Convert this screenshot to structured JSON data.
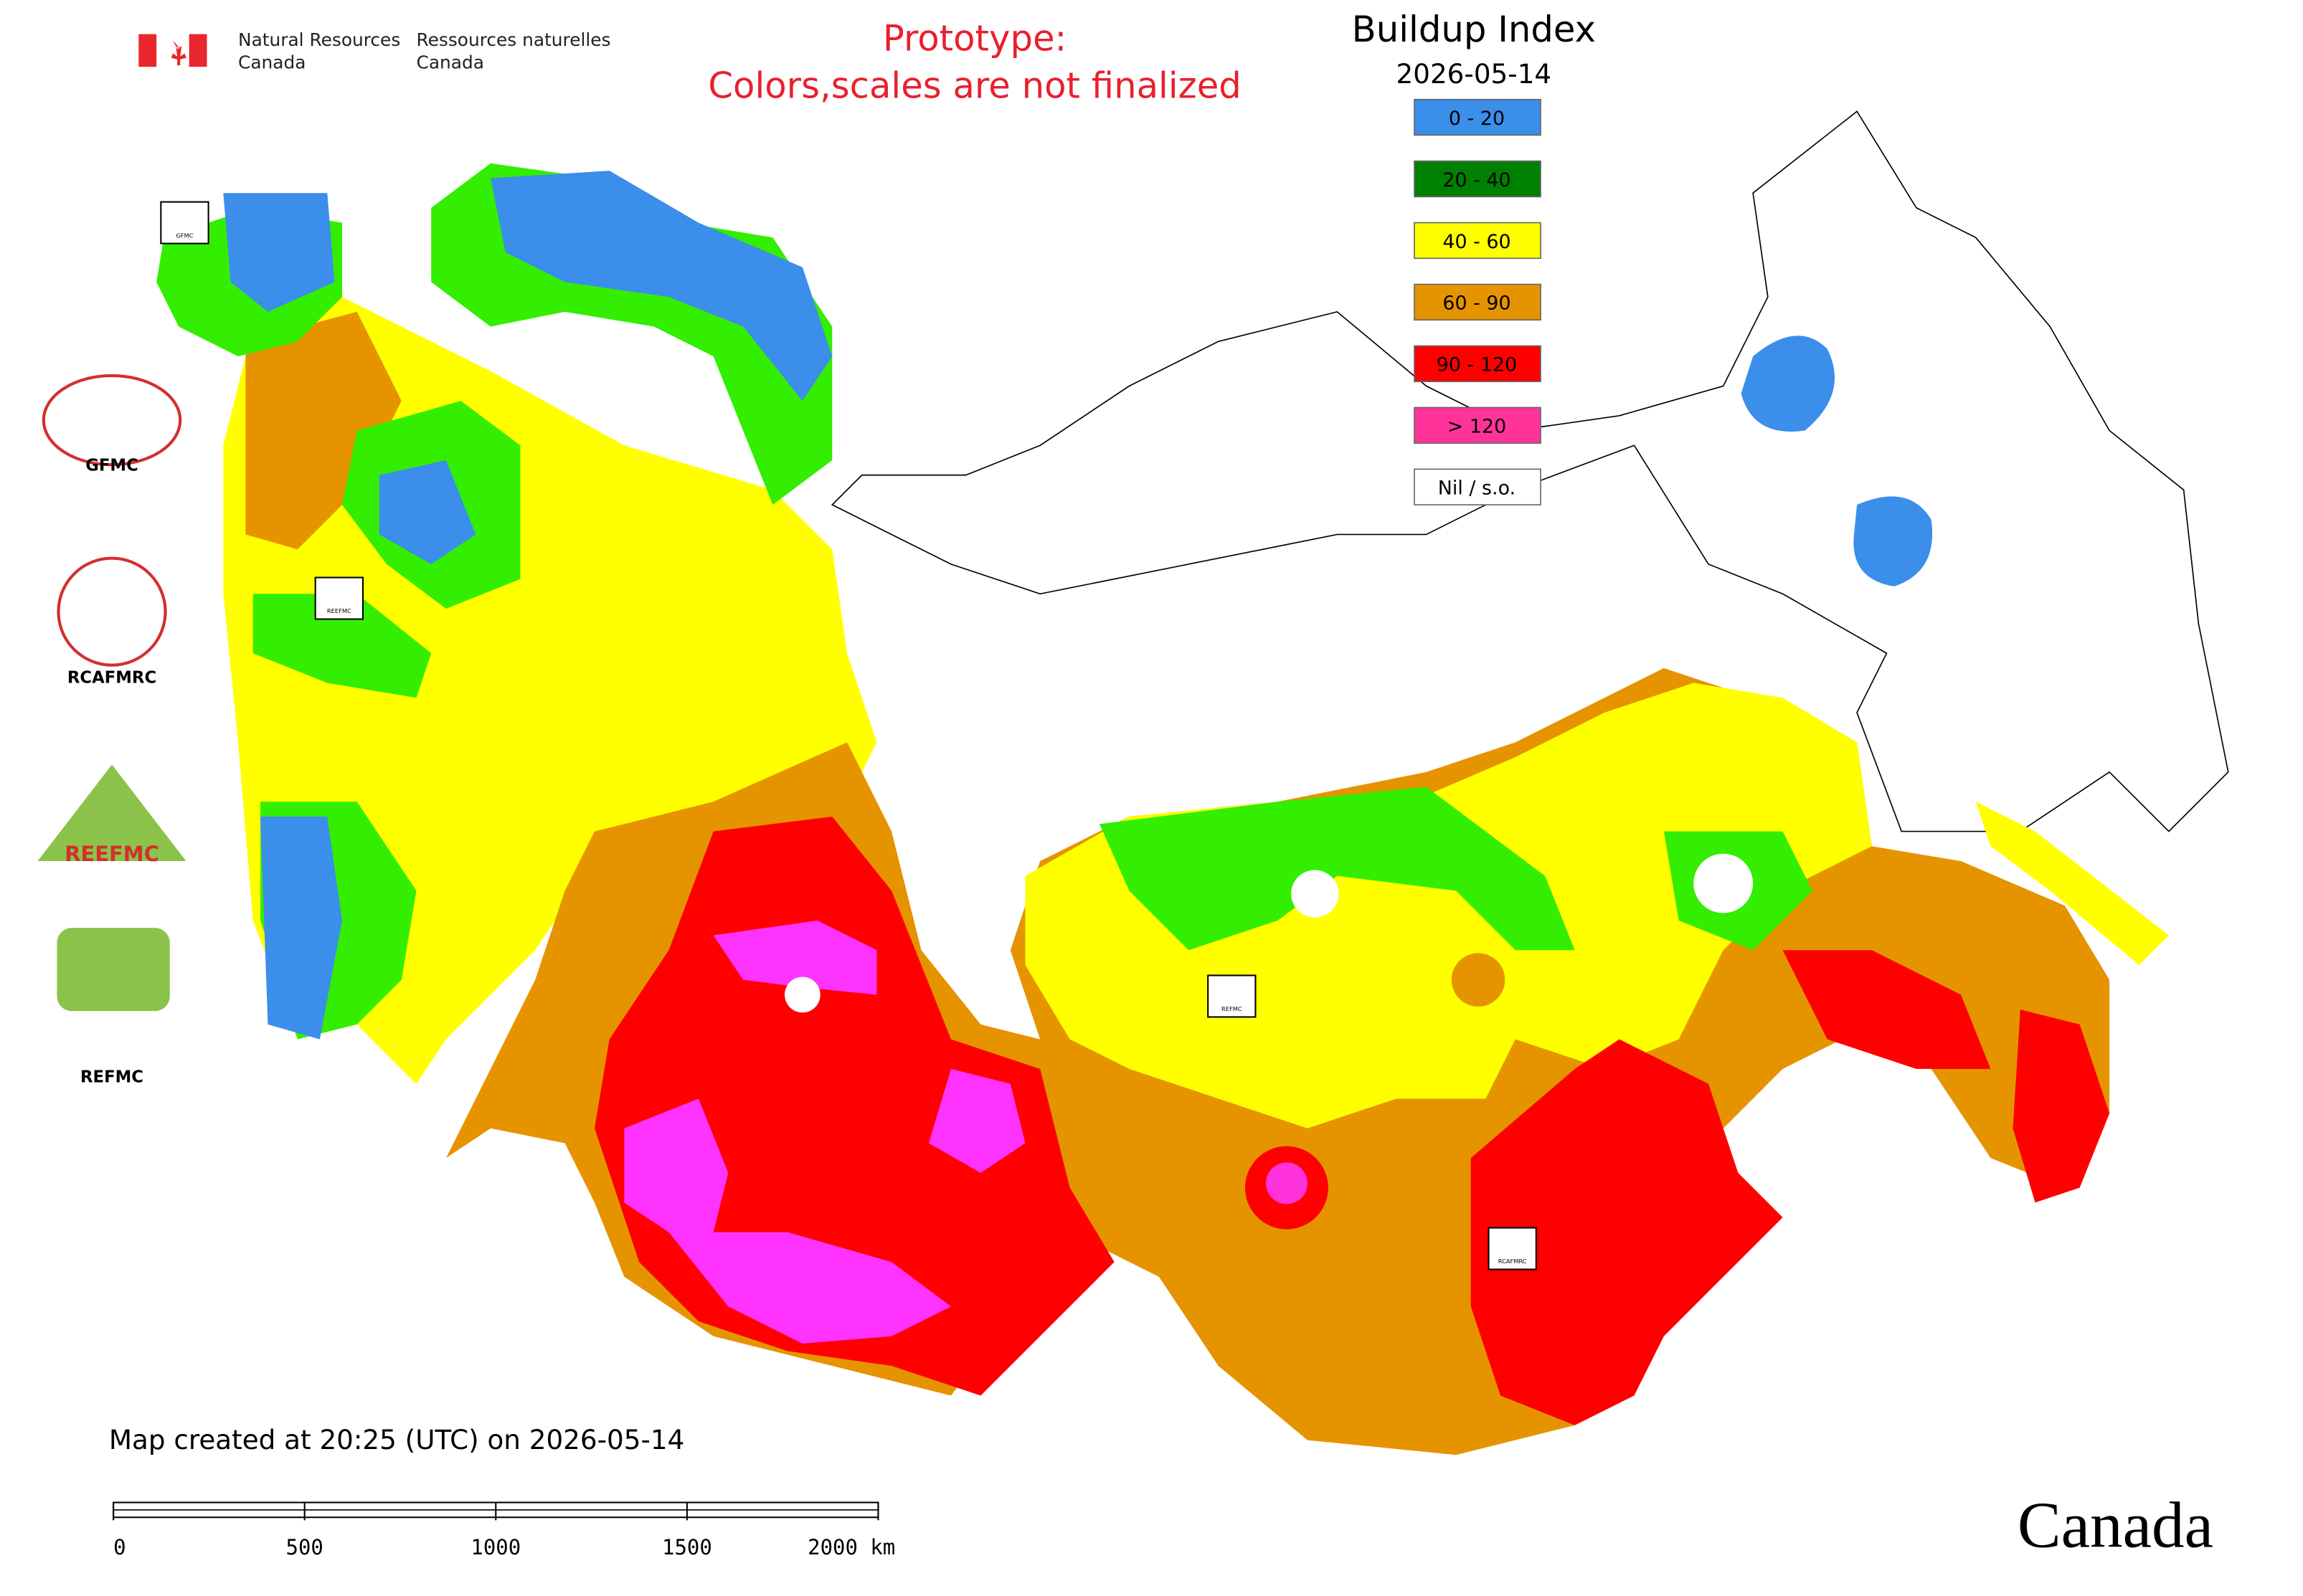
{
  "header": {
    "agency_en": [
      "Natural Resources",
      "Canada"
    ],
    "agency_fr": [
      "Ressources naturelles",
      "Canada"
    ],
    "notice": [
      "Prototype:",
      "Colors,scales are not finalized"
    ]
  },
  "legend": {
    "title": "Buildup Index",
    "date": "2026-05-14",
    "items": [
      {
        "label": "0 - 20",
        "color": "#3b8eea"
      },
      {
        "label": "20 - 40",
        "color": "#008000"
      },
      {
        "label": "40 - 60",
        "color": "#ffff00"
      },
      {
        "label": "60 - 90",
        "color": "#e59400"
      },
      {
        "label": "90 - 120",
        "color": "#ff0000"
      },
      {
        "label": "> 120",
        "color": "#ff3399"
      },
      {
        "label": "Nil / s.o.",
        "color": "#ffffff"
      }
    ]
  },
  "logos": [
    {
      "label": "GFMC"
    },
    {
      "label": "RCAFMRC"
    },
    {
      "label": "REEFMC"
    },
    {
      "label": "REFMC"
    }
  ],
  "map_markers": [
    {
      "label": "GFMC"
    },
    {
      "label": "REEFMC"
    },
    {
      "label": "REFMC"
    },
    {
      "label": "RCAFMRC"
    }
  ],
  "footer": {
    "created": "Map created at 20:25 (UTC) on 2026-05-14",
    "scale_labels": [
      "0",
      "500",
      "1000",
      "1500",
      "2000 km"
    ],
    "wordmark": "Canada"
  }
}
